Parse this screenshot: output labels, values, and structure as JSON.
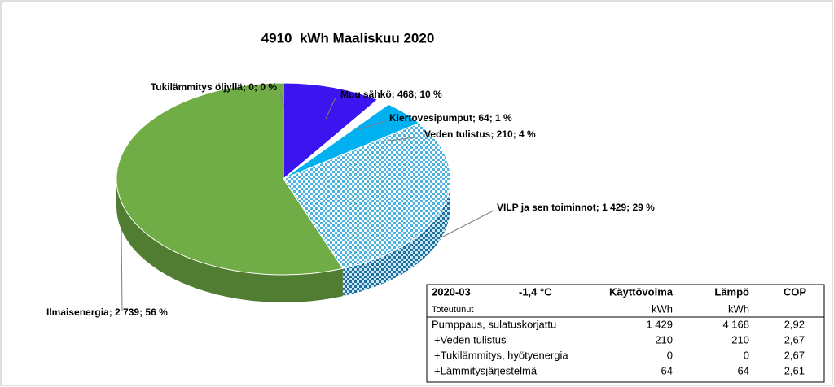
{
  "chart_data": {
    "type": "pie",
    "title": "4910  kWh Maaliskuu 2020",
    "labels": [
      "Tukilämmitys öljyllä; 0; 0 %",
      "Muu sähkö; 468; 10 %",
      "Kiertovesipumput; 64; 1 %",
      "Veden tulistus; 210; 4 %",
      "VILP ja sen toiminnot; 1 429; 29 %",
      "Ilmaisenergia; 2 739; 56 %"
    ],
    "values": [
      0,
      468,
      64,
      210,
      1429,
      2739
    ],
    "colors": [
      "#c00000",
      "#3c14f0",
      "#ffffff",
      "#00b0f0",
      "#5bbfe6",
      "#70ad47"
    ],
    "patterned": [
      false,
      false,
      false,
      false,
      true,
      false
    ]
  },
  "table": {
    "header": [
      "2020-03",
      "-1,4 °C",
      "Käyttövoima",
      "Lämpö",
      "COP"
    ],
    "subheader": {
      "label": "Toteutunut",
      "units": [
        "kWh",
        "kWh"
      ]
    },
    "rows": [
      [
        "Pumppaus, sulatuskorjattu",
        "1 429",
        "4 168",
        "2,92"
      ],
      [
        "+Veden tulistus",
        "210",
        "210",
        "2,67"
      ],
      [
        "+Tukilämmitys, hyötyenergia",
        "0",
        "0",
        "2,67"
      ],
      [
        "+Lämmitysjärjestelmä",
        "64",
        "64",
        "2,61"
      ]
    ]
  }
}
